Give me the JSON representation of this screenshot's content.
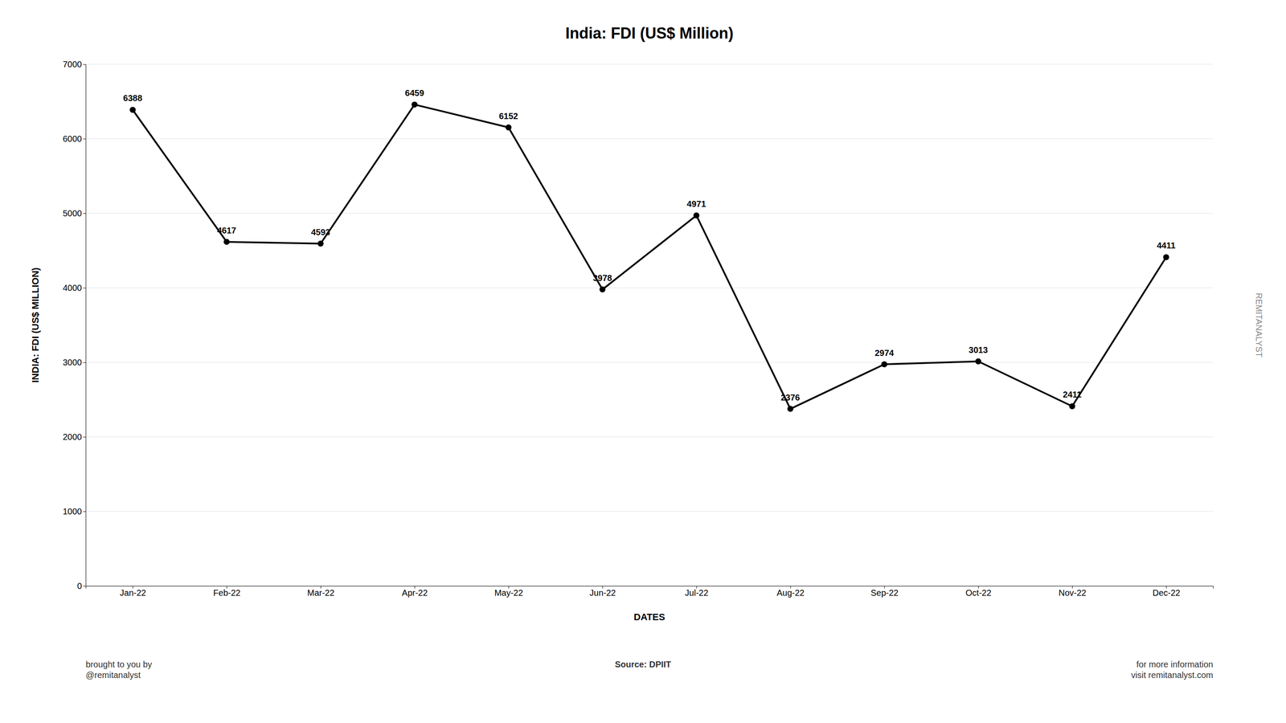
{
  "chart_data": {
    "type": "line",
    "title": "India: FDI (US$ Million)",
    "x_label": "DATES",
    "y_label": "INDIA: FDI (US$ MILLION)",
    "categories": [
      "Jan-22",
      "Feb-22",
      "Mar-22",
      "Apr-22",
      "May-22",
      "Jun-22",
      "Jul-22",
      "Aug-22",
      "Sep-22",
      "Oct-22",
      "Nov-22",
      "Dec-22"
    ],
    "values": [
      6388,
      4617,
      4593,
      6459,
      6152,
      3978,
      4971,
      2376,
      2974,
      3013,
      2411,
      4411
    ],
    "color": "#000000",
    "marker": "circle",
    "ylim": [
      0,
      7000
    ],
    "yticks": [
      0,
      1000,
      2000,
      3000,
      4000,
      5000,
      6000,
      7000
    ],
    "grid": true,
    "data_labels": true,
    "annotations": [
      "brought to you by\n@remitanalyst",
      "Source: DPIIT",
      "for more information\nvisit remitanalyst.com",
      "REMITANALYST"
    ]
  }
}
